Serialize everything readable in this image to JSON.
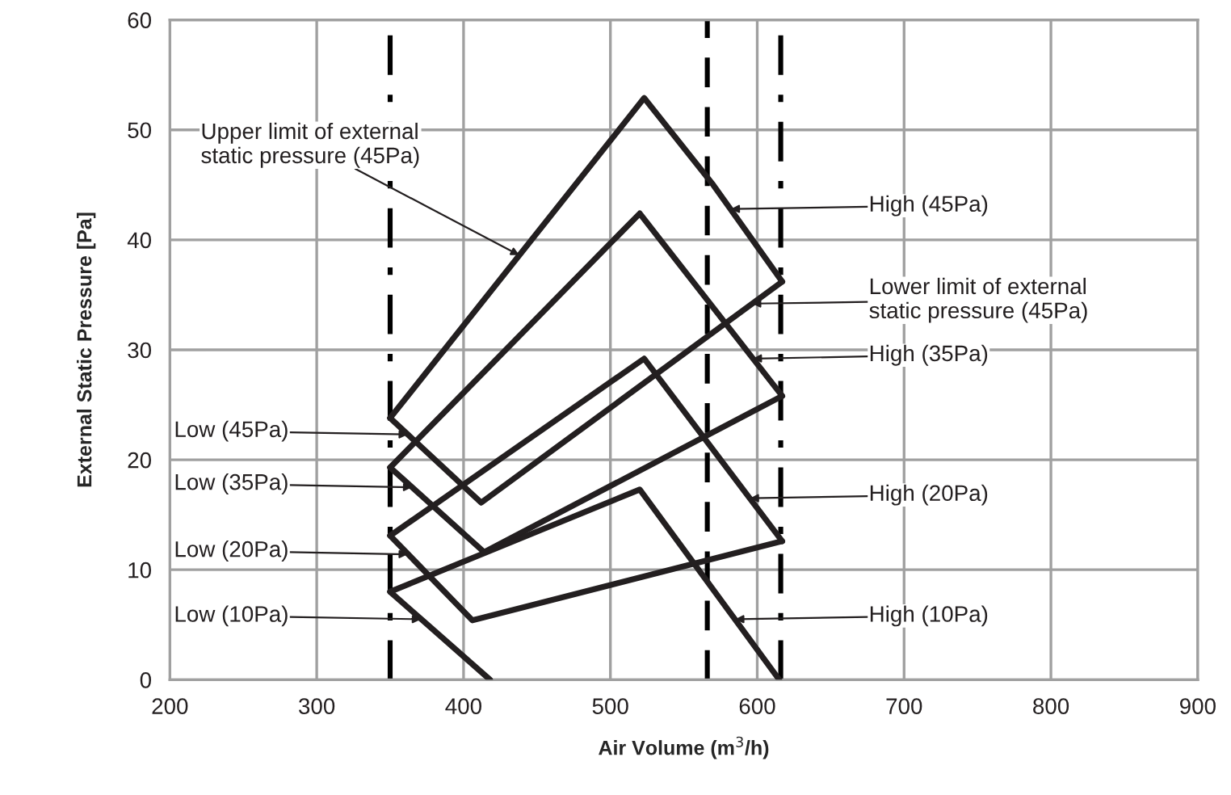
{
  "chart_data": {
    "type": "line",
    "xlabel": "Air Volume (m$^{3}$/h)",
    "ylabel": "External Static Pressure [Pa]",
    "xlim": [
      200,
      900
    ],
    "xticks": [
      200,
      300,
      400,
      500,
      600,
      700,
      800,
      900
    ],
    "ylim": [
      0,
      60
    ],
    "yticks": [
      0,
      10,
      20,
      30,
      40,
      50,
      60
    ],
    "grid": true,
    "legend": false,
    "marker": "none",
    "line_style": "solid",
    "series": [
      {
        "color": "#231f20",
        "x": [
          350,
          523,
          570,
          617
        ],
        "values": [
          23.8,
          52.9,
          45.0,
          36.2
        ]
      },
      {
        "color": "#231f20",
        "x": [
          350,
          412,
          617
        ],
        "values": [
          23.8,
          16.1,
          36.2
        ]
      },
      {
        "color": "#231f20",
        "x": [
          350,
          520,
          617
        ],
        "values": [
          19.3,
          42.4,
          25.8
        ]
      },
      {
        "color": "#231f20",
        "x": [
          350,
          414,
          617
        ],
        "values": [
          19.3,
          11.6,
          25.8
        ]
      },
      {
        "color": "#231f20",
        "x": [
          350,
          523,
          617
        ],
        "values": [
          13.1,
          29.2,
          12.6
        ]
      },
      {
        "color": "#231f20",
        "x": [
          350,
          406,
          617
        ],
        "values": [
          13.1,
          5.4,
          12.6
        ]
      },
      {
        "color": "#231f20",
        "x": [
          350,
          520,
          615
        ],
        "values": [
          8.0,
          17.3,
          0
        ]
      },
      {
        "color": "#231f20",
        "x": [
          350,
          418
        ],
        "values": [
          8.0,
          0
        ]
      }
    ],
    "ref_lines": [
      {
        "axis": "x",
        "value": 350,
        "line_style": "dashdot",
        "color": "#000000"
      },
      {
        "axis": "x",
        "value": 566,
        "line_style": "dashed",
        "color": "#000000"
      },
      {
        "axis": "x",
        "value": 616,
        "line_style": "dashdot",
        "color": "#000000"
      }
    ],
    "annotations": [
      {
        "text": "Upper limit of external\nstatic pressure (45Pa)",
        "x": 438,
        "y": 38.6
      },
      {
        "text": "High (45Pa)",
        "x": 582,
        "y": 42.8
      },
      {
        "text": "Lower limit of external\nstatic pressure (45Pa)",
        "x": 596.5,
        "y": 34.2
      },
      {
        "text": "High (35Pa)",
        "x": 597,
        "y": 29.2
      },
      {
        "text": "High (20Pa)",
        "x": 595,
        "y": 16.5
      },
      {
        "text": "High (10Pa)",
        "x": 585,
        "y": 5.5
      },
      {
        "text": "Low (45Pa)",
        "x": 362,
        "y": 22.3
      },
      {
        "text": "Low (35Pa)",
        "x": 365,
        "y": 17.5
      },
      {
        "text": "Low (20Pa)",
        "x": 362,
        "y": 11.4
      },
      {
        "text": "Low (10Pa)",
        "x": 371,
        "y": 5.5
      }
    ]
  }
}
